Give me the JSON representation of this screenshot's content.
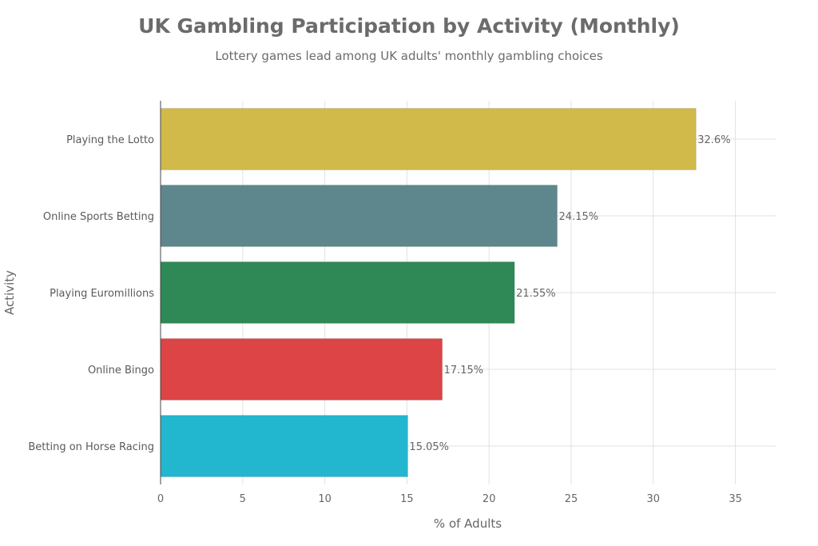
{
  "chart_data": {
    "type": "bar",
    "orientation": "horizontal",
    "title": "UK Gambling Participation by Activity (Monthly)",
    "subtitle": "Lottery games lead among UK adults' monthly gambling choices",
    "xlabel": "% of Adults",
    "ylabel": "Activity",
    "xlim": [
      0,
      37.5
    ],
    "xticks": [
      0,
      5,
      10,
      15,
      20,
      25,
      30,
      35
    ],
    "grid": true,
    "categories": [
      "Playing the Lotto",
      "Online Sports Betting",
      "Playing Euromillions",
      "Online Bingo",
      "Betting on Horse Racing"
    ],
    "values": [
      32.6,
      24.15,
      21.55,
      17.15,
      15.05
    ],
    "data_labels": [
      "32.6%",
      "24.15%",
      "21.55%",
      "17.15%",
      "15.05%"
    ],
    "colors": [
      "#d1ba4a",
      "#5d878d",
      "#2e8956",
      "#dc4446",
      "#22b7ce"
    ]
  }
}
